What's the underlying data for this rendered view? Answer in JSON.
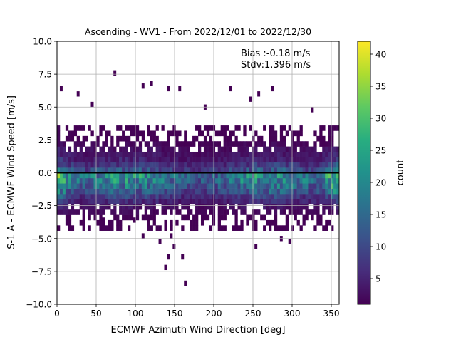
{
  "chart_data": {
    "type": "heatmap",
    "title": "Ascending - WV1 - From 2022/12/01 to 2022/12/30",
    "xlabel": "ECMWF Azimuth Wind Direction [deg]",
    "ylabel": "S-1 A - ECMWF Wind Speed [m/s]",
    "xlim": [
      0,
      360
    ],
    "ylim": [
      -10,
      10
    ],
    "x_ticks": [
      "0",
      "50",
      "100",
      "150",
      "200",
      "250",
      "300",
      "350"
    ],
    "y_ticks": [
      "−10.0",
      "−7.5",
      "−5.0",
      "−2.5",
      "0.0",
      "2.5",
      "5.0",
      "7.5",
      "10.0"
    ],
    "grid": true,
    "reference_line_y": 0,
    "annotations": [
      "Bias :-0.18 m/s",
      "Stdv:1.396 m/s"
    ],
    "colorbar": {
      "label": "count",
      "range": [
        1,
        42
      ],
      "ticks": [
        "5",
        "10",
        "15",
        "20",
        "25",
        "30",
        "35",
        "40"
      ],
      "colormap": "viridis"
    },
    "bin_size": {
      "x": 3.6,
      "y": 0.4
    },
    "density_profile": {
      "y_bin_centers": [
        -4.2,
        -3.8,
        -3.4,
        -3.0,
        -2.6,
        -2.2,
        -1.8,
        -1.4,
        -1.0,
        -0.6,
        -0.2,
        0.2,
        0.6,
        1.0,
        1.4,
        1.8,
        2.2,
        2.6,
        3.0,
        3.4
      ],
      "typical_count": [
        1,
        1,
        1,
        2,
        3,
        6,
        9,
        13,
        17,
        20,
        21,
        12,
        8,
        5,
        4,
        3,
        2,
        1,
        1,
        1
      ]
    },
    "outliers": [
      [
        5.4,
        6.4
      ],
      [
        27,
        6.0
      ],
      [
        45,
        5.2
      ],
      [
        75,
        7.6
      ],
      [
        110,
        6.6
      ],
      [
        120,
        6.8
      ],
      [
        143,
        6.4
      ],
      [
        158,
        6.4
      ],
      [
        188,
        5.0
      ],
      [
        223,
        6.4
      ],
      [
        245,
        5.6
      ],
      [
        256,
        6.0
      ],
      [
        275,
        6.4
      ],
      [
        327,
        4.8
      ],
      [
        151,
        -5.6
      ],
      [
        143,
        -6.4
      ],
      [
        138,
        -7.2
      ],
      [
        160,
        -6.4
      ],
      [
        163,
        -8.4
      ],
      [
        255,
        -5.6
      ],
      [
        287,
        -5.0
      ],
      [
        296,
        -5.2
      ],
      [
        144,
        -4.8
      ],
      [
        130,
        -5.2
      ],
      [
        108,
        -4.8
      ],
      [
        100,
        -3.6
      ],
      [
        60,
        -3.6
      ]
    ]
  }
}
